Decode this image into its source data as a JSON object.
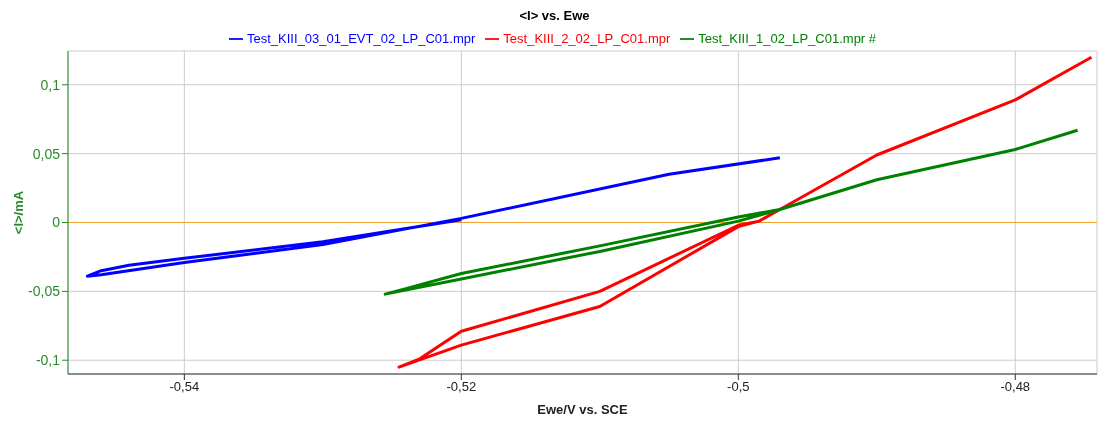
{
  "chart_data": {
    "type": "line",
    "title": "<I> vs. Ewe",
    "xlabel": "Ewe/V vs. SCE",
    "ylabel": "<I>/mA",
    "xlim": [
      -0.5484,
      -0.4741
    ],
    "ylim": [
      -0.11,
      0.1245
    ],
    "xticks": [
      {
        "value": -0.54,
        "label": "-0,54"
      },
      {
        "value": -0.52,
        "label": "-0,52"
      },
      {
        "value": -0.5,
        "label": "-0,5"
      },
      {
        "value": -0.48,
        "label": "-0,48"
      }
    ],
    "yticks": [
      {
        "value": -0.1,
        "label": "-0,1"
      },
      {
        "value": -0.05,
        "label": "-0,05"
      },
      0,
      {
        "value": 0.05,
        "label": "0,05"
      },
      {
        "value": 0.1,
        "label": "0,1"
      }
    ],
    "grid": true,
    "legend": "top",
    "marker": "none",
    "line_style": "solid",
    "ref_lines": [
      {
        "axis": "y",
        "value": 0,
        "color": "#f0a030"
      }
    ],
    "series": [
      {
        "name": "Test_KIII_03_01_EVT_02_LP_C01.mpr",
        "color": "#0000ff",
        "x": [
          -0.497,
          -0.505,
          -0.52,
          -0.53,
          -0.54,
          -0.546,
          -0.547,
          -0.546,
          -0.544,
          -0.54,
          -0.53,
          -0.52
        ],
        "values": [
          0.047,
          0.035,
          0.003,
          -0.016,
          -0.029,
          -0.038,
          -0.039,
          -0.035,
          -0.031,
          -0.026,
          -0.014,
          0.002
        ]
      },
      {
        "name": "Test_KIII_2_02_LP_C01.mpr",
        "color": "#ff0000",
        "x": [
          -0.4745,
          -0.48,
          -0.49,
          -0.497,
          -0.4985,
          -0.5,
          -0.51,
          -0.52,
          -0.5245,
          -0.523,
          -0.52,
          -0.51,
          -0.5,
          -0.4985
        ],
        "values": [
          0.12,
          0.089,
          0.049,
          0.0094,
          0.001,
          -0.003,
          -0.061,
          -0.089,
          -0.105,
          -0.099,
          -0.079,
          -0.05,
          -0.002,
          0.001
        ]
      },
      {
        "name": "Test_KIII_1_02_LP_C01.mpr #",
        "color": "#008000",
        "x": [
          -0.4755,
          -0.48,
          -0.49,
          -0.497,
          -0.5,
          -0.51,
          -0.52,
          -0.5255,
          -0.524,
          -0.52,
          -0.51,
          -0.5,
          -0.497
        ],
        "values": [
          0.067,
          0.053,
          0.031,
          0.0094,
          0.001,
          -0.021,
          -0.041,
          -0.052,
          -0.048,
          -0.037,
          -0.017,
          0.004,
          0.0094
        ]
      }
    ]
  }
}
